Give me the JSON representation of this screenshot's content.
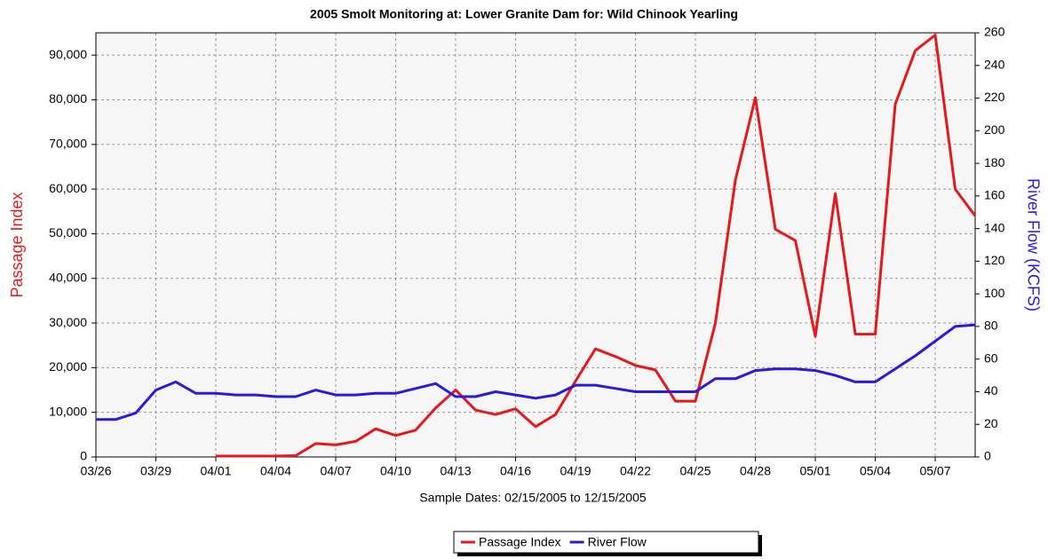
{
  "chart_data": {
    "type": "line",
    "title": "2005 Smolt Monitoring at: Lower Granite Dam for: Wild Chinook Yearling",
    "xlabel": "Sample Dates: 02/15/2005 to 12/15/2005",
    "ylabel": "Passage Index",
    "y2label": "River Flow (KCFS)",
    "categories": [
      "03/26",
      null,
      null,
      "03/29",
      null,
      null,
      "04/01",
      null,
      null,
      "04/04",
      null,
      null,
      "04/07",
      null,
      null,
      "04/10",
      null,
      null,
      "04/13",
      null,
      null,
      "04/16",
      null,
      null,
      "04/19",
      null,
      null,
      "04/22",
      null,
      null,
      "04/25",
      null,
      null,
      "04/28",
      null,
      null,
      "05/01",
      null,
      null,
      "05/04",
      null,
      null,
      "05/07",
      null,
      null
    ],
    "series": [
      {
        "name": "Passage Index",
        "color": "#e31a1c",
        "axis": "y",
        "values": [
          null,
          null,
          null,
          null,
          null,
          null,
          200,
          200,
          200,
          200,
          300,
          3000,
          2700,
          3500,
          6300,
          4800,
          6000,
          11000,
          15000,
          10500,
          9500,
          10800,
          6800,
          9500,
          17000,
          24200,
          22500,
          20500,
          19500,
          12500,
          12500,
          30000,
          62000,
          80500,
          51000,
          48500,
          27000,
          59000,
          27500,
          27500,
          79000,
          91000,
          94500,
          60000,
          54000
        ]
      },
      {
        "name": "River Flow",
        "color": "#2b1bd6",
        "axis": "y2",
        "values": [
          23,
          23,
          27,
          41,
          46,
          39,
          39,
          38,
          38,
          37,
          37,
          41,
          38,
          38,
          39,
          39,
          42,
          45,
          37,
          37,
          40,
          38,
          36,
          38,
          44,
          44,
          42,
          40,
          40,
          40,
          40,
          48,
          48,
          53,
          54,
          54,
          53,
          50,
          46,
          46,
          54,
          62,
          71,
          80,
          81
        ]
      }
    ],
    "ylim": [
      0,
      95000
    ],
    "yticks": [
      0,
      {
        "value": 10000,
        "label": "10,000"
      },
      {
        "value": 20000,
        "label": "20,000"
      },
      {
        "value": 30000,
        "label": "30,000"
      },
      {
        "value": 40000,
        "label": "40,000"
      },
      {
        "value": 50000,
        "label": "50,000"
      },
      {
        "value": 60000,
        "label": "60,000"
      },
      {
        "value": 70000,
        "label": "70,000"
      },
      {
        "value": 80000,
        "label": "80,000"
      },
      {
        "value": 90000,
        "label": "90,000"
      }
    ],
    "y2lim": [
      0,
      260
    ],
    "y2ticks": [
      0,
      20,
      40,
      60,
      80,
      100,
      120,
      140,
      160,
      180,
      200,
      220,
      240,
      260
    ],
    "grid": true,
    "legend": "bottom"
  }
}
